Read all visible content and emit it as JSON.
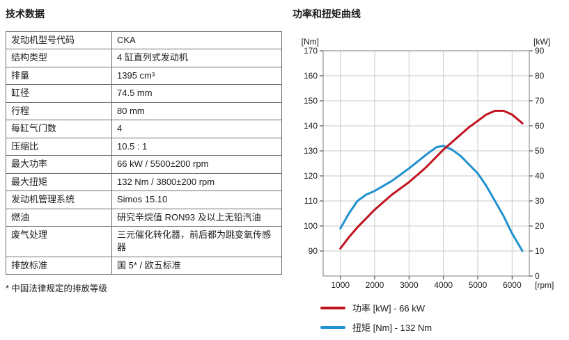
{
  "left_panel": {
    "title": "技术数据",
    "footnote": "* 中国法律规定的排放等级",
    "table": {
      "rows": [
        {
          "label": "发动机型号代码",
          "value": "CKA"
        },
        {
          "label": "结构类型",
          "value": "4 缸直列式发动机"
        },
        {
          "label": "排量",
          "value": "1395 cm³"
        },
        {
          "label": "缸径",
          "value": "74.5 mm"
        },
        {
          "label": "行程",
          "value": "80 mm"
        },
        {
          "label": "每缸气门数",
          "value": "4"
        },
        {
          "label": "压缩比",
          "value": "10.5 : 1"
        },
        {
          "label": "最大功率",
          "value": "66 kW / 5500±200 rpm"
        },
        {
          "label": "最大扭矩",
          "value": "132 Nm / 3800±200 rpm"
        },
        {
          "label": "发动机管理系统",
          "value": "Simos 15.10"
        },
        {
          "label": "燃油",
          "value": "研究辛烷值 RON93 及以上无铅汽油"
        },
        {
          "label": "废气处理",
          "value": "三元催化转化器，前后都为跳变氧传感器"
        },
        {
          "label": "排放标准",
          "value": "国 5* / 欧五标准"
        }
      ]
    }
  },
  "right_panel": {
    "title": "功率和扭矩曲线"
  },
  "chart_data": {
    "type": "line",
    "title": "功率和扭矩曲线",
    "grid": true,
    "legend_position": "bottom",
    "x_axis": {
      "label": "[rpm]",
      "min": 500,
      "max": 6500,
      "ticks": [
        1000,
        2000,
        3000,
        4000,
        5000,
        6000
      ]
    },
    "left_axis": {
      "label": "[Nm]",
      "min": 80,
      "max": 170,
      "ticks": [
        90,
        100,
        110,
        120,
        130,
        140,
        150,
        160,
        170
      ]
    },
    "right_axis": {
      "label": "[kW]",
      "min": 0,
      "max": 90,
      "ticks": [
        0,
        10,
        20,
        30,
        40,
        50,
        60,
        70,
        80,
        90
      ]
    },
    "series": [
      {
        "name": "功率 [kW] - 66 kW",
        "color": "#c01320",
        "axis": "right",
        "x": [
          1000,
          1250,
          1500,
          1750,
          2000,
          2250,
          2500,
          2750,
          3000,
          3250,
          3500,
          3750,
          4000,
          4250,
          4500,
          4750,
          5000,
          5250,
          5500,
          5750,
          6000,
          6300
        ],
        "y": [
          11,
          15.5,
          19.5,
          23,
          26.5,
          29.5,
          32.5,
          35,
          37.5,
          40.5,
          43.5,
          47,
          50.5,
          53.5,
          56.5,
          59.5,
          62,
          64.5,
          66,
          66,
          64.5,
          61
        ]
      },
      {
        "name": "扭矩 [Nm] - 132 Nm",
        "color": "#2191d0",
        "axis": "left",
        "x": [
          1000,
          1250,
          1500,
          1750,
          2000,
          2500,
          3000,
          3500,
          3800,
          4000,
          4250,
          4500,
          4750,
          5000,
          5250,
          5500,
          5750,
          6000,
          6300
        ],
        "y": [
          99,
          105,
          110,
          112.5,
          114,
          118,
          123,
          128.5,
          131.5,
          132,
          130.5,
          128,
          124.5,
          121,
          116,
          110,
          104,
          97,
          90
        ]
      }
    ]
  }
}
